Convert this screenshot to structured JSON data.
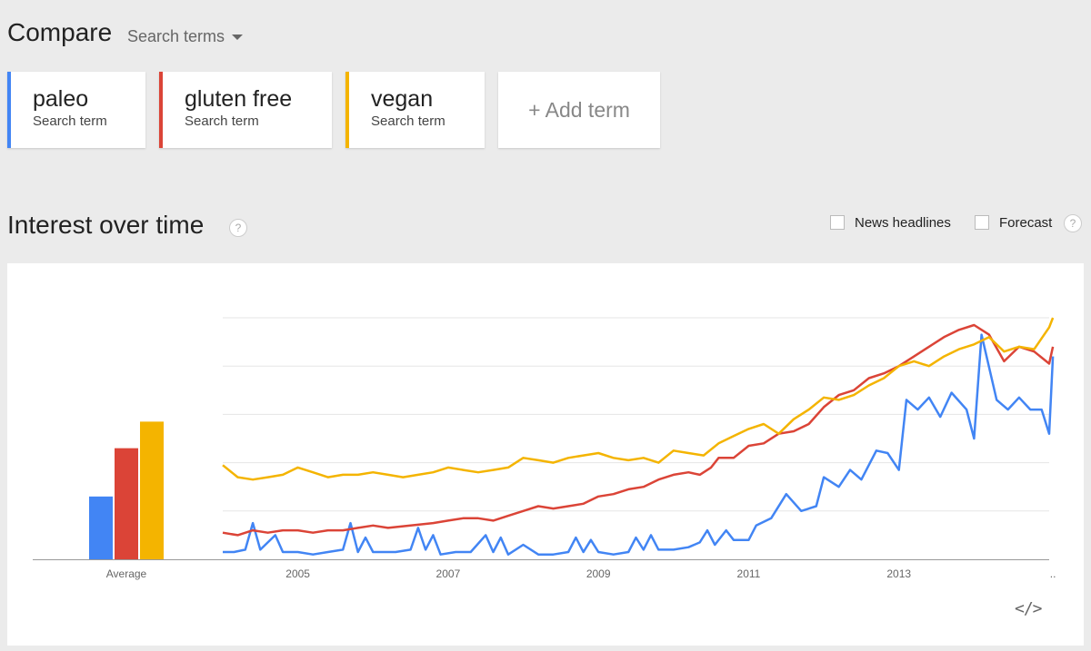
{
  "header": {
    "compare_title": "Compare",
    "search_terms_label": "Search terms"
  },
  "terms": [
    {
      "name": "paleo",
      "subtitle": "Search term",
      "color": "#4285f4"
    },
    {
      "name": "gluten free",
      "subtitle": "Search term",
      "color": "#db4437"
    },
    {
      "name": "vegan",
      "subtitle": "Search term",
      "color": "#f4b400"
    }
  ],
  "add_term": {
    "label": "+ Add term"
  },
  "section": {
    "title": "Interest over time",
    "help_glyph": "?"
  },
  "options": {
    "news_headlines": "News headlines",
    "forecast": "Forecast"
  },
  "embed": {
    "label": "</>"
  },
  "chart_data": {
    "type": "line",
    "x_tick_labels": [
      "2005",
      "2007",
      "2009",
      "2011",
      "2013",
      ".."
    ],
    "x_range": [
      2004.0,
      2015.0
    ],
    "ylim": [
      0,
      100
    ],
    "grid": true,
    "average": {
      "label": "Average",
      "values": [
        {
          "term": "paleo",
          "value": 26
        },
        {
          "term": "gluten free",
          "value": 46
        },
        {
          "term": "vegan",
          "value": 57
        }
      ]
    },
    "series": [
      {
        "name": "paleo",
        "color": "#4285f4",
        "points": [
          [
            2004.0,
            3
          ],
          [
            2004.15,
            3
          ],
          [
            2004.3,
            4
          ],
          [
            2004.4,
            15
          ],
          [
            2004.5,
            4
          ],
          [
            2004.7,
            10
          ],
          [
            2004.8,
            3
          ],
          [
            2005.0,
            3
          ],
          [
            2005.2,
            2
          ],
          [
            2005.4,
            3
          ],
          [
            2005.6,
            4
          ],
          [
            2005.7,
            15
          ],
          [
            2005.8,
            3
          ],
          [
            2005.9,
            9
          ],
          [
            2006.0,
            3
          ],
          [
            2006.3,
            3
          ],
          [
            2006.5,
            4
          ],
          [
            2006.6,
            13
          ],
          [
            2006.7,
            4
          ],
          [
            2006.8,
            10
          ],
          [
            2006.9,
            2
          ],
          [
            2007.1,
            3
          ],
          [
            2007.3,
            3
          ],
          [
            2007.5,
            10
          ],
          [
            2007.6,
            3
          ],
          [
            2007.7,
            9
          ],
          [
            2007.8,
            2
          ],
          [
            2008.0,
            6
          ],
          [
            2008.2,
            2
          ],
          [
            2008.4,
            2
          ],
          [
            2008.6,
            3
          ],
          [
            2008.7,
            9
          ],
          [
            2008.8,
            3
          ],
          [
            2008.9,
            8
          ],
          [
            2009.0,
            3
          ],
          [
            2009.2,
            2
          ],
          [
            2009.4,
            3
          ],
          [
            2009.5,
            9
          ],
          [
            2009.6,
            4
          ],
          [
            2009.7,
            10
          ],
          [
            2009.8,
            4
          ],
          [
            2010.0,
            4
          ],
          [
            2010.2,
            5
          ],
          [
            2010.35,
            7
          ],
          [
            2010.45,
            12
          ],
          [
            2010.55,
            6
          ],
          [
            2010.7,
            12
          ],
          [
            2010.8,
            8
          ],
          [
            2011.0,
            8
          ],
          [
            2011.1,
            14
          ],
          [
            2011.3,
            17
          ],
          [
            2011.5,
            27
          ],
          [
            2011.7,
            20
          ],
          [
            2011.9,
            22
          ],
          [
            2012.0,
            34
          ],
          [
            2012.2,
            30
          ],
          [
            2012.35,
            37
          ],
          [
            2012.5,
            33
          ],
          [
            2012.7,
            45
          ],
          [
            2012.85,
            44
          ],
          [
            2013.0,
            37
          ],
          [
            2013.1,
            66
          ],
          [
            2013.25,
            62
          ],
          [
            2013.4,
            67
          ],
          [
            2013.55,
            59
          ],
          [
            2013.7,
            69
          ],
          [
            2013.9,
            62
          ],
          [
            2014.0,
            50
          ],
          [
            2014.1,
            93
          ],
          [
            2014.3,
            66
          ],
          [
            2014.45,
            62
          ],
          [
            2014.6,
            67
          ],
          [
            2014.75,
            62
          ],
          [
            2014.9,
            62
          ],
          [
            2015.0,
            52
          ],
          [
            2015.05,
            84
          ]
        ]
      },
      {
        "name": "gluten free",
        "color": "#db4437",
        "points": [
          [
            2004.0,
            11
          ],
          [
            2004.2,
            10
          ],
          [
            2004.4,
            12
          ],
          [
            2004.6,
            11
          ],
          [
            2004.8,
            12
          ],
          [
            2005.0,
            12
          ],
          [
            2005.2,
            11
          ],
          [
            2005.4,
            12
          ],
          [
            2005.6,
            12
          ],
          [
            2005.8,
            13
          ],
          [
            2006.0,
            14
          ],
          [
            2006.2,
            13
          ],
          [
            2006.5,
            14
          ],
          [
            2006.8,
            15
          ],
          [
            2007.0,
            16
          ],
          [
            2007.2,
            17
          ],
          [
            2007.4,
            17
          ],
          [
            2007.6,
            16
          ],
          [
            2007.8,
            18
          ],
          [
            2008.0,
            20
          ],
          [
            2008.2,
            22
          ],
          [
            2008.4,
            21
          ],
          [
            2008.6,
            22
          ],
          [
            2008.8,
            23
          ],
          [
            2009.0,
            26
          ],
          [
            2009.2,
            27
          ],
          [
            2009.4,
            29
          ],
          [
            2009.6,
            30
          ],
          [
            2009.8,
            33
          ],
          [
            2010.0,
            35
          ],
          [
            2010.2,
            36
          ],
          [
            2010.35,
            35
          ],
          [
            2010.5,
            38
          ],
          [
            2010.6,
            42
          ],
          [
            2010.8,
            42
          ],
          [
            2011.0,
            47
          ],
          [
            2011.2,
            48
          ],
          [
            2011.4,
            52
          ],
          [
            2011.6,
            53
          ],
          [
            2011.8,
            56
          ],
          [
            2012.0,
            63
          ],
          [
            2012.2,
            68
          ],
          [
            2012.4,
            70
          ],
          [
            2012.6,
            75
          ],
          [
            2012.8,
            77
          ],
          [
            2013.0,
            80
          ],
          [
            2013.2,
            84
          ],
          [
            2013.4,
            88
          ],
          [
            2013.6,
            92
          ],
          [
            2013.8,
            95
          ],
          [
            2014.0,
            97
          ],
          [
            2014.2,
            93
          ],
          [
            2014.4,
            82
          ],
          [
            2014.6,
            88
          ],
          [
            2014.8,
            86
          ],
          [
            2015.0,
            81
          ],
          [
            2015.05,
            88
          ]
        ]
      },
      {
        "name": "vegan",
        "color": "#f4b400",
        "points": [
          [
            2004.0,
            39
          ],
          [
            2004.2,
            34
          ],
          [
            2004.4,
            33
          ],
          [
            2004.6,
            34
          ],
          [
            2004.8,
            35
          ],
          [
            2005.0,
            38
          ],
          [
            2005.2,
            36
          ],
          [
            2005.4,
            34
          ],
          [
            2005.6,
            35
          ],
          [
            2005.8,
            35
          ],
          [
            2006.0,
            36
          ],
          [
            2006.2,
            35
          ],
          [
            2006.4,
            34
          ],
          [
            2006.6,
            35
          ],
          [
            2006.8,
            36
          ],
          [
            2007.0,
            38
          ],
          [
            2007.2,
            37
          ],
          [
            2007.4,
            36
          ],
          [
            2007.6,
            37
          ],
          [
            2007.8,
            38
          ],
          [
            2008.0,
            42
          ],
          [
            2008.2,
            41
          ],
          [
            2008.4,
            40
          ],
          [
            2008.6,
            42
          ],
          [
            2008.8,
            43
          ],
          [
            2009.0,
            44
          ],
          [
            2009.2,
            42
          ],
          [
            2009.4,
            41
          ],
          [
            2009.6,
            42
          ],
          [
            2009.8,
            40
          ],
          [
            2010.0,
            45
          ],
          [
            2010.2,
            44
          ],
          [
            2010.4,
            43
          ],
          [
            2010.6,
            48
          ],
          [
            2010.8,
            51
          ],
          [
            2011.0,
            54
          ],
          [
            2011.2,
            56
          ],
          [
            2011.4,
            52
          ],
          [
            2011.6,
            58
          ],
          [
            2011.8,
            62
          ],
          [
            2012.0,
            67
          ],
          [
            2012.2,
            66
          ],
          [
            2012.4,
            68
          ],
          [
            2012.6,
            72
          ],
          [
            2012.8,
            75
          ],
          [
            2013.0,
            80
          ],
          [
            2013.2,
            82
          ],
          [
            2013.4,
            80
          ],
          [
            2013.6,
            84
          ],
          [
            2013.8,
            87
          ],
          [
            2014.0,
            89
          ],
          [
            2014.2,
            92
          ],
          [
            2014.4,
            86
          ],
          [
            2014.6,
            88
          ],
          [
            2014.8,
            87
          ],
          [
            2015.0,
            96
          ],
          [
            2015.05,
            100
          ]
        ]
      }
    ]
  }
}
